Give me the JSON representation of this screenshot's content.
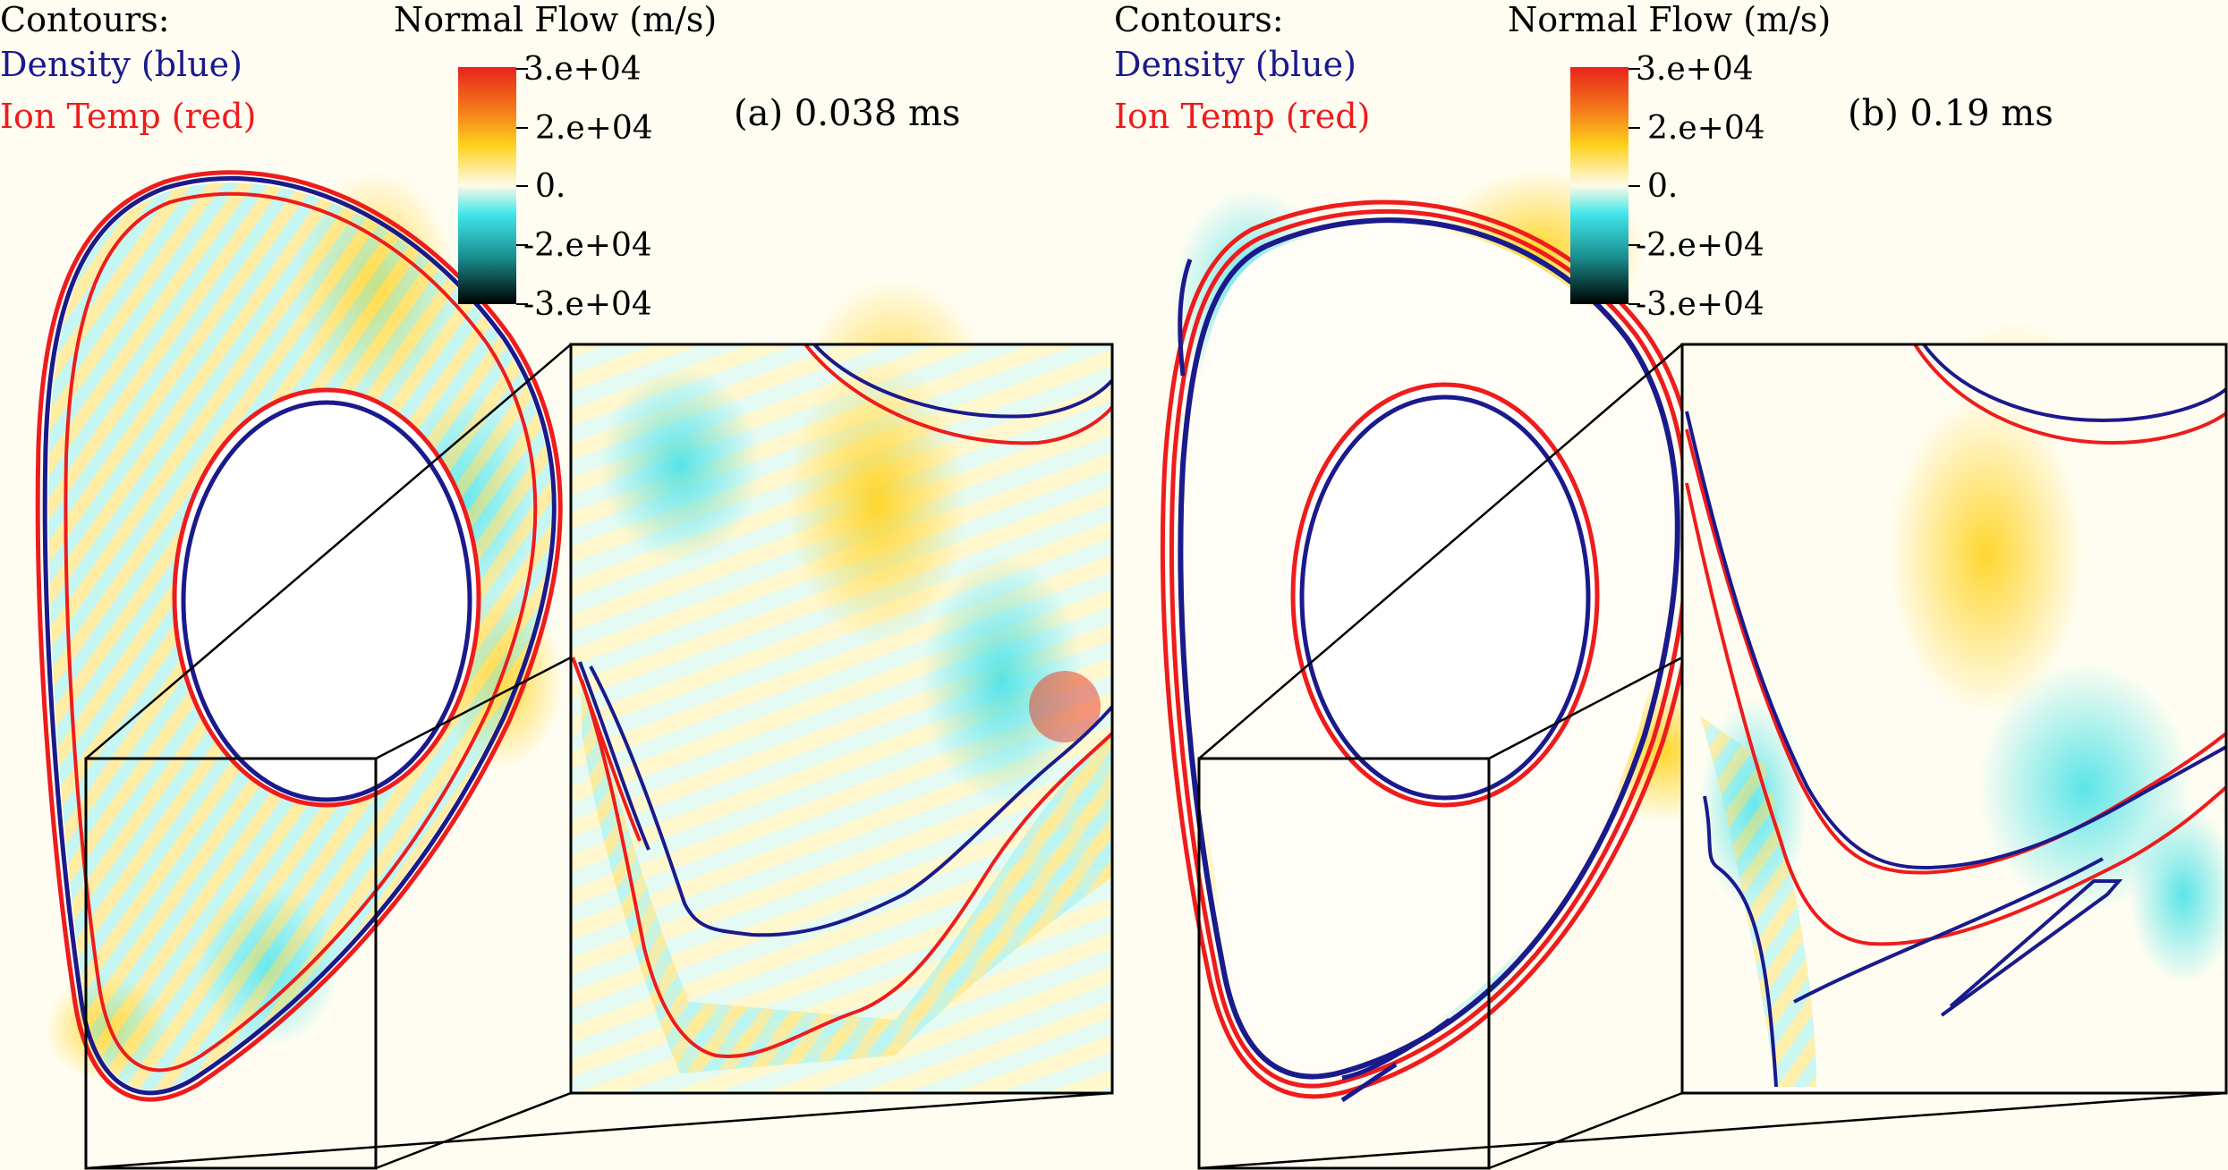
{
  "panels": [
    {
      "contours_heading": "Contours:",
      "density_label": "Density (blue)",
      "temp_label": "Ion Temp (red)",
      "colorbar_title": "Normal Flow (m/s)",
      "ticks": [
        "3.e+04",
        "2.e+04",
        "0.",
        "-2.e+04",
        "-3.e+04"
      ],
      "time_label": "(a) 0.038 ms"
    },
    {
      "contours_heading": "Contours:",
      "density_label": "Density (blue)",
      "temp_label": "Ion Temp (red)",
      "colorbar_title": "Normal Flow (m/s)",
      "ticks": [
        "3.e+04",
        "2.e+04",
        "0.",
        "-2.e+04",
        "-3.e+04"
      ],
      "time_label": "(b) 0.19 ms"
    }
  ],
  "colors": {
    "density": "#1a1a8c",
    "ion_temp": "#ee1c1c",
    "flow_positive": "#ffd21a",
    "flow_strong_positive": "#e8321e",
    "flow_negative": "#3fe0e6",
    "flow_strong_negative": "#0a3a3a"
  }
}
